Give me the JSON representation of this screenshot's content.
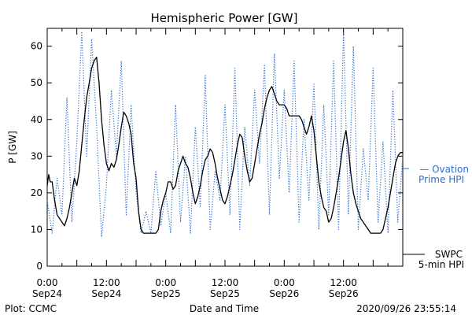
{
  "chart_data": {
    "type": "line",
    "title": "Hemispheric Power [GW]",
    "ylabel": "P [GW]",
    "xlabel": "Date and Time",
    "ylim": [
      0,
      64
    ],
    "yticks": [
      0,
      10,
      20,
      30,
      40,
      50,
      60
    ],
    "xlim_hours": [
      0,
      72
    ],
    "xticks": [
      {
        "h": 0,
        "time": "0:00",
        "day": "Sep24"
      },
      {
        "h": 12,
        "time": "12:00",
        "day": "Sep24"
      },
      {
        "h": 24,
        "time": "0:00",
        "day": "Sep25"
      },
      {
        "h": 36,
        "time": "12:00",
        "day": "Sep25"
      },
      {
        "h": 48,
        "time": "0:00",
        "day": "Sep26"
      },
      {
        "h": 60,
        "time": "12:00",
        "day": "Sep26"
      }
    ],
    "grid": false,
    "series": [
      {
        "name": "SWPC 5-min HPI",
        "color": "#000000",
        "style": "solid",
        "x": [
          0,
          0.3,
          0.6,
          1,
          1.5,
          2,
          2.5,
          3,
          3.5,
          4,
          4.5,
          5,
          5.5,
          6,
          6.5,
          7,
          7.5,
          8,
          8.5,
          9,
          9.5,
          10,
          10.5,
          11,
          11.5,
          12,
          12.5,
          13,
          13.5,
          14,
          14.5,
          15,
          15.5,
          16,
          16.5,
          17,
          17.5,
          18,
          18.5,
          19,
          19.5,
          20,
          20.5,
          21,
          21.5,
          22,
          22.5,
          23,
          23.5,
          24,
          24.5,
          25,
          25.5,
          26,
          26.5,
          27,
          27.5,
          28,
          28.5,
          29,
          29.5,
          30,
          30.5,
          31,
          31.5,
          32,
          32.5,
          33,
          33.5,
          34,
          34.5,
          35,
          35.5,
          36,
          36.5,
          37,
          37.5,
          38,
          38.5,
          39,
          39.5,
          40,
          40.5,
          41,
          41.5,
          42,
          42.5,
          43,
          43.5,
          44,
          44.5,
          45,
          45.5,
          46,
          46.5,
          47,
          47.5,
          48,
          48.5,
          49,
          49.5,
          50,
          50.5,
          51,
          51.5,
          52,
          52.5,
          53,
          53.5,
          54,
          54.5,
          55,
          55.5,
          56,
          56.5,
          57,
          57.5,
          58,
          58.5,
          59,
          59.5,
          60,
          60.5,
          61,
          61.5,
          62,
          62.5,
          63,
          63.5,
          64,
          64.5,
          65,
          65.5,
          66,
          66.5,
          67,
          67.5,
          68,
          68.5,
          69,
          69.5,
          70,
          70.5,
          71,
          71.5,
          72
        ],
        "values": [
          22,
          25,
          23,
          23,
          18,
          14,
          13,
          12,
          11,
          13,
          16,
          20,
          24,
          22,
          26,
          33,
          40,
          46,
          50,
          54,
          56,
          57,
          50,
          40,
          33,
          28,
          26,
          28,
          27,
          29,
          33,
          38,
          42,
          41,
          39,
          36,
          28,
          24,
          15,
          10,
          9,
          9,
          9,
          9,
          9,
          9,
          10,
          15,
          18,
          20,
          23,
          23,
          21,
          22,
          26,
          28,
          30,
          28,
          27,
          24,
          20,
          17,
          19,
          22,
          26,
          29,
          30,
          32,
          31,
          28,
          24,
          21,
          18,
          17,
          19,
          22,
          25,
          29,
          33,
          36,
          35,
          30,
          26,
          23,
          24,
          28,
          32,
          36,
          39,
          43,
          46,
          48,
          49,
          47,
          45,
          44,
          44,
          44,
          43,
          41,
          41,
          41,
          41,
          41,
          40,
          38,
          36,
          38,
          41,
          37,
          30,
          23,
          19,
          16,
          15,
          12,
          13,
          16,
          20,
          24,
          29,
          34,
          37,
          32,
          25,
          20,
          17,
          15,
          13,
          12,
          11,
          10,
          9,
          9,
          9,
          9,
          9,
          10,
          13,
          16,
          20,
          24,
          28,
          30,
          31,
          31
        ]
      },
      {
        "name": "Ovation Prime HPI",
        "color": "#2a6fd6",
        "style": "dotted",
        "x": [
          0,
          1,
          2,
          3,
          4,
          5,
          6,
          7,
          8,
          9,
          10,
          11,
          12,
          13,
          14,
          15,
          16,
          17,
          18,
          19,
          20,
          21,
          22,
          23,
          24,
          25,
          26,
          27,
          28,
          29,
          30,
          31,
          32,
          33,
          34,
          35,
          36,
          37,
          38,
          39,
          40,
          41,
          42,
          43,
          44,
          45,
          46,
          47,
          48,
          49,
          50,
          51,
          52,
          53,
          54,
          55,
          56,
          57,
          58,
          59,
          60,
          61,
          62,
          63,
          64,
          65,
          66,
          67,
          68,
          69,
          70,
          71,
          72
        ],
        "values": [
          18,
          9,
          24,
          14,
          46,
          12,
          34,
          64,
          30,
          62,
          38,
          8,
          22,
          48,
          30,
          56,
          14,
          44,
          20,
          9,
          15,
          9,
          26,
          11,
          20,
          9,
          44,
          12,
          30,
          9,
          38,
          16,
          52,
          10,
          26,
          18,
          44,
          14,
          54,
          10,
          38,
          22,
          48,
          28,
          55,
          14,
          58,
          24,
          48,
          20,
          56,
          12,
          40,
          18,
          50,
          10,
          44,
          14,
          56,
          10,
          64,
          14,
          60,
          10,
          32,
          18,
          54,
          12,
          34,
          9,
          48,
          12,
          30
        ]
      }
    ],
    "legend": [
      {
        "series": "Ovation Prime HPI",
        "line1": "— Ovation",
        "line2": "Prime HPI",
        "placement": "right"
      },
      {
        "series": "SWPC 5-min HPI",
        "line1": "SWPC",
        "line2": "5-min HPI",
        "placement": "bottom-right"
      }
    ]
  },
  "footer": {
    "plot_by": "Plot: CCMC",
    "timestamp": "2020/09/26 23:55:14"
  }
}
